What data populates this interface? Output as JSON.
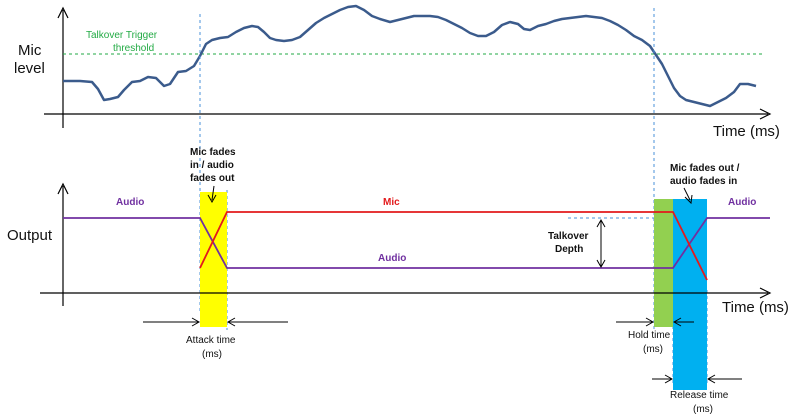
{
  "colors": {
    "mic_level_line": "#3b5b8c",
    "threshold_line": "#22aa44",
    "audio_line": "#7030a0",
    "mic_line": "#e31a1c",
    "attack_region": "#ffff00",
    "hold_region": "#92d050",
    "release_region": "#00b0f0",
    "guide_line": "#4a90d9",
    "axis": "#000000"
  },
  "top_panel": {
    "y_label_line1": "Mic",
    "y_label_line2": "level",
    "x_label": "Time (ms)",
    "threshold_label_line1": "Talkover Trigger",
    "threshold_label_line2": "threshold"
  },
  "bottom_panel": {
    "y_label": "Output",
    "x_label": "Time (ms)",
    "audio_label_left": "Audio",
    "audio_label_mid": "Audio",
    "audio_label_right": "Audio",
    "mic_label": "Mic",
    "fade_in_note": [
      "Mic fades",
      "in / audio",
      "fades out"
    ],
    "fade_out_note": [
      "Mic fades out /",
      "audio fades in"
    ],
    "depth_label": [
      "Talkover",
      "Depth"
    ],
    "attack_label": [
      "Attack time",
      "(ms)"
    ],
    "hold_label": [
      "Hold time",
      "(ms)"
    ],
    "release_label": [
      "Release time",
      "(ms)"
    ]
  }
}
